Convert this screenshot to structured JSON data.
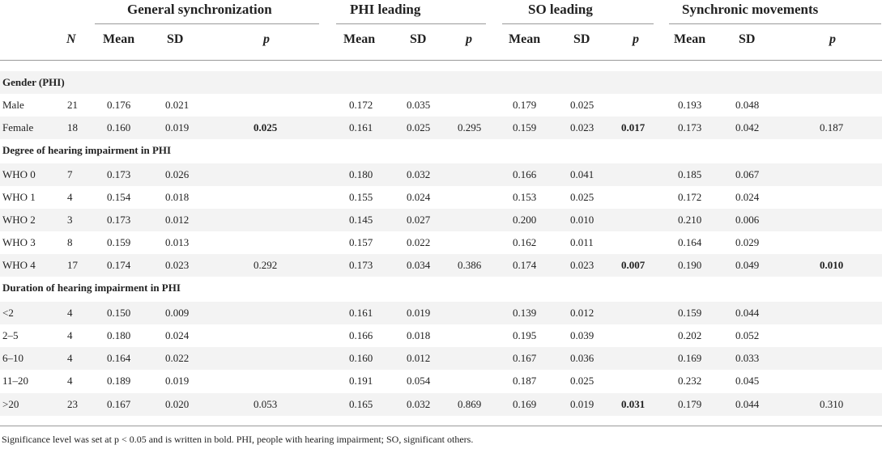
{
  "groups": {
    "general": "General synchronization",
    "phi": "PHI leading",
    "so": "SO leading",
    "sync": "Synchronic movements"
  },
  "cols": {
    "n": "N",
    "g_mean": "Mean",
    "g_sd": "SD",
    "g_p": "p",
    "phi_mean": "Mean",
    "phi_sd": "SD",
    "phi_p": "p",
    "so_mean": "Mean",
    "so_sd": "SD",
    "so_p": "p",
    "s_mean": "Mean",
    "s_sd": "SD",
    "s_p": "p"
  },
  "sections": [
    {
      "title": "Gender (PHI)",
      "rows": [
        {
          "label": "Male",
          "n": "21",
          "g_mean": "0.176",
          "g_sd": "0.021",
          "g_p": "",
          "phi_mean": "0.172",
          "phi_sd": "0.035",
          "phi_p": "",
          "so_mean": "0.179",
          "so_sd": "0.025",
          "so_p": "",
          "s_mean": "0.193",
          "s_sd": "0.048",
          "s_p": ""
        },
        {
          "label": "Female",
          "n": "18",
          "g_mean": "0.160",
          "g_sd": "0.019",
          "g_p": "0.025",
          "phi_mean": "0.161",
          "phi_sd": "0.025",
          "phi_p": "0.295",
          "so_mean": "0.159",
          "so_sd": "0.023",
          "so_p": "0.017",
          "s_mean": "0.173",
          "s_sd": "0.042",
          "s_p": "0.187"
        }
      ]
    },
    {
      "title": "Degree of hearing impairment in PHI",
      "rows": [
        {
          "label": "WHO 0",
          "n": "7",
          "g_mean": "0.173",
          "g_sd": "0.026",
          "g_p": "",
          "phi_mean": "0.180",
          "phi_sd": "0.032",
          "phi_p": "",
          "so_mean": "0.166",
          "so_sd": "0.041",
          "so_p": "",
          "s_mean": "0.185",
          "s_sd": "0.067",
          "s_p": ""
        },
        {
          "label": "WHO 1",
          "n": "4",
          "g_mean": "0.154",
          "g_sd": "0.018",
          "g_p": "",
          "phi_mean": "0.155",
          "phi_sd": "0.024",
          "phi_p": "",
          "so_mean": "0.153",
          "so_sd": "0.025",
          "so_p": "",
          "s_mean": "0.172",
          "s_sd": "0.024",
          "s_p": ""
        },
        {
          "label": "WHO 2",
          "n": "3",
          "g_mean": "0.173",
          "g_sd": "0.012",
          "g_p": "",
          "phi_mean": "0.145",
          "phi_sd": "0.027",
          "phi_p": "",
          "so_mean": "0.200",
          "so_sd": "0.010",
          "so_p": "",
          "s_mean": "0.210",
          "s_sd": "0.006",
          "s_p": ""
        },
        {
          "label": "WHO 3",
          "n": "8",
          "g_mean": "0.159",
          "g_sd": "0.013",
          "g_p": "",
          "phi_mean": "0.157",
          "phi_sd": "0.022",
          "phi_p": "",
          "so_mean": "0.162",
          "so_sd": "0.011",
          "so_p": "",
          "s_mean": "0.164",
          "s_sd": "0.029",
          "s_p": ""
        },
        {
          "label": "WHO 4",
          "n": "17",
          "g_mean": "0.174",
          "g_sd": "0.023",
          "g_p": "0.292",
          "phi_mean": "0.173",
          "phi_sd": "0.034",
          "phi_p": "0.386",
          "so_mean": "0.174",
          "so_sd": "0.023",
          "so_p": "0.007",
          "s_mean": "0.190",
          "s_sd": "0.049",
          "s_p": "0.010"
        }
      ]
    },
    {
      "title": "Duration of hearing impairment in PHI",
      "rows": [
        {
          "label": "<2",
          "n": "4",
          "g_mean": "0.150",
          "g_sd": "0.009",
          "g_p": "",
          "phi_mean": "0.161",
          "phi_sd": "0.019",
          "phi_p": "",
          "so_mean": "0.139",
          "so_sd": "0.012",
          "so_p": "",
          "s_mean": "0.159",
          "s_sd": "0.044",
          "s_p": ""
        },
        {
          "label": "2–5",
          "n": "4",
          "g_mean": "0.180",
          "g_sd": "0.024",
          "g_p": "",
          "phi_mean": "0.166",
          "phi_sd": "0.018",
          "phi_p": "",
          "so_mean": "0.195",
          "so_sd": "0.039",
          "so_p": "",
          "s_mean": "0.202",
          "s_sd": "0.052",
          "s_p": ""
        },
        {
          "label": "6–10",
          "n": "4",
          "g_mean": "0.164",
          "g_sd": "0.022",
          "g_p": "",
          "phi_mean": "0.160",
          "phi_sd": "0.012",
          "phi_p": "",
          "so_mean": "0.167",
          "so_sd": "0.036",
          "so_p": "",
          "s_mean": "0.169",
          "s_sd": "0.033",
          "s_p": ""
        },
        {
          "label": "11–20",
          "n": "4",
          "g_mean": "0.189",
          "g_sd": "0.019",
          "g_p": "",
          "phi_mean": "0.191",
          "phi_sd": "0.054",
          "phi_p": "",
          "so_mean": "0.187",
          "so_sd": "0.025",
          "so_p": "",
          "s_mean": "0.232",
          "s_sd": "0.045",
          "s_p": ""
        },
        {
          "label": ">20",
          "n": "23",
          "g_mean": "0.167",
          "g_sd": "0.020",
          "g_p": "0.053",
          "phi_mean": "0.165",
          "phi_sd": "0.032",
          "phi_p": "0.869",
          "so_mean": "0.169",
          "so_sd": "0.019",
          "so_p": "0.031",
          "s_mean": "0.179",
          "s_sd": "0.044",
          "s_p": "0.310"
        }
      ]
    }
  ],
  "bold_values": [
    "0.025",
    "0.017",
    "0.007",
    "0.010",
    "0.031"
  ],
  "footnote": "Significance level was set at p < 0.05 and is written in bold. PHI, people with hearing impairment; SO, significant others."
}
